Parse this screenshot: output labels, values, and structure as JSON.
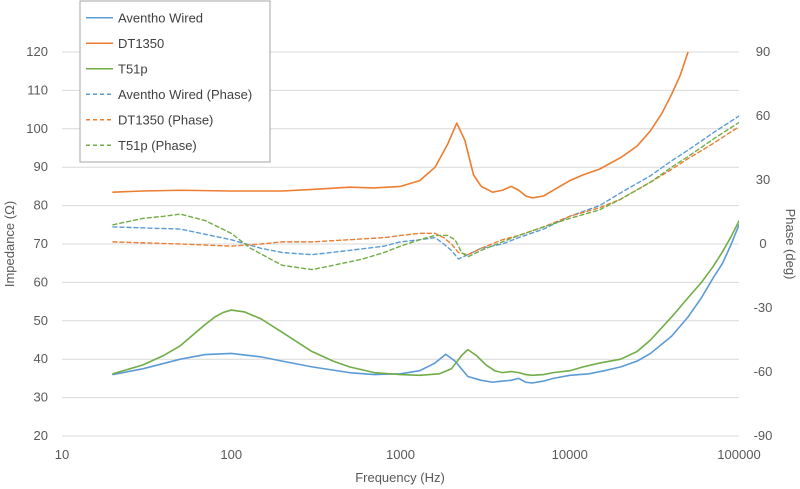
{
  "chart_data": {
    "type": "line",
    "title": "",
    "xlabel": "Frequency (Hz)",
    "ylabel": "Impedance (Ω)",
    "y2label": "Phase (deg)",
    "x_scale": "log",
    "xlim": [
      10,
      100000
    ],
    "ylim": [
      20,
      120
    ],
    "y2lim": [
      -90,
      90
    ],
    "x_ticks": [
      10,
      100,
      1000,
      10000,
      100000
    ],
    "x_tick_labels": [
      "10",
      "100",
      "1000",
      "10000",
      "100000"
    ],
    "y_ticks": [
      20,
      30,
      40,
      50,
      60,
      70,
      80,
      90,
      100,
      110,
      120
    ],
    "y2_ticks": [
      -90,
      -60,
      -30,
      0,
      30,
      60,
      90
    ],
    "grid": "horizontal",
    "legend_position": "top-left",
    "series": [
      {
        "name": "Aventho Wired",
        "axis": "left",
        "style": "solid",
        "color": "#5B9BD5",
        "points": [
          [
            20,
            36.0
          ],
          [
            30,
            37.5
          ],
          [
            50,
            40.0
          ],
          [
            70,
            41.2
          ],
          [
            100,
            41.5
          ],
          [
            150,
            40.6
          ],
          [
            200,
            39.5
          ],
          [
            300,
            38.0
          ],
          [
            500,
            36.5
          ],
          [
            700,
            36.0
          ],
          [
            1000,
            36.2
          ],
          [
            1300,
            37.0
          ],
          [
            1600,
            39.0
          ],
          [
            1850,
            41.3
          ],
          [
            2100,
            39.5
          ],
          [
            2500,
            35.5
          ],
          [
            3000,
            34.5
          ],
          [
            3500,
            34.0
          ],
          [
            4000,
            34.3
          ],
          [
            4500,
            34.5
          ],
          [
            5000,
            35.0
          ],
          [
            5500,
            34.0
          ],
          [
            6000,
            33.8
          ],
          [
            7000,
            34.3
          ],
          [
            8000,
            35.0
          ],
          [
            10000,
            35.8
          ],
          [
            13000,
            36.2
          ],
          [
            16000,
            37.0
          ],
          [
            20000,
            38.0
          ],
          [
            25000,
            39.5
          ],
          [
            30000,
            41.5
          ],
          [
            40000,
            46.0
          ],
          [
            50000,
            51.0
          ],
          [
            60000,
            56.0
          ],
          [
            70000,
            61.0
          ],
          [
            80000,
            65.0
          ],
          [
            90000,
            70.0
          ],
          [
            100000,
            75.0
          ]
        ]
      },
      {
        "name": "DT1350",
        "axis": "left",
        "style": "solid",
        "color": "#ED7D31",
        "points": [
          [
            20,
            83.5
          ],
          [
            30,
            83.8
          ],
          [
            50,
            84.0
          ],
          [
            100,
            83.8
          ],
          [
            200,
            83.8
          ],
          [
            300,
            84.2
          ],
          [
            500,
            84.8
          ],
          [
            700,
            84.6
          ],
          [
            1000,
            85.0
          ],
          [
            1300,
            86.5
          ],
          [
            1600,
            90.0
          ],
          [
            1900,
            96.0
          ],
          [
            2150,
            101.5
          ],
          [
            2400,
            97.0
          ],
          [
            2700,
            88.0
          ],
          [
            3000,
            85.0
          ],
          [
            3500,
            83.5
          ],
          [
            4000,
            84.0
          ],
          [
            4500,
            85.0
          ],
          [
            5000,
            84.0
          ],
          [
            5500,
            82.5
          ],
          [
            6000,
            82.0
          ],
          [
            7000,
            82.5
          ],
          [
            8000,
            84.0
          ],
          [
            10000,
            86.5
          ],
          [
            12000,
            88.0
          ],
          [
            15000,
            89.5
          ],
          [
            20000,
            92.5
          ],
          [
            25000,
            95.5
          ],
          [
            30000,
            99.5
          ],
          [
            35000,
            104.0
          ],
          [
            40000,
            109.0
          ],
          [
            45000,
            114.0
          ],
          [
            50000,
            120.0
          ]
        ]
      },
      {
        "name": "T51p",
        "axis": "left",
        "style": "solid",
        "color": "#70AD47",
        "points": [
          [
            20,
            36.2
          ],
          [
            30,
            38.5
          ],
          [
            40,
            41.0
          ],
          [
            50,
            43.5
          ],
          [
            60,
            46.5
          ],
          [
            70,
            49.0
          ],
          [
            80,
            51.0
          ],
          [
            90,
            52.2
          ],
          [
            100,
            52.8
          ],
          [
            120,
            52.3
          ],
          [
            150,
            50.5
          ],
          [
            200,
            47.0
          ],
          [
            300,
            42.0
          ],
          [
            400,
            39.5
          ],
          [
            500,
            38.0
          ],
          [
            700,
            36.5
          ],
          [
            1000,
            36.0
          ],
          [
            1300,
            35.8
          ],
          [
            1700,
            36.2
          ],
          [
            2000,
            37.5
          ],
          [
            2300,
            41.0
          ],
          [
            2500,
            42.5
          ],
          [
            2800,
            41.0
          ],
          [
            3200,
            38.5
          ],
          [
            3600,
            37.0
          ],
          [
            4000,
            36.5
          ],
          [
            4500,
            36.8
          ],
          [
            5000,
            36.5
          ],
          [
            5500,
            36.0
          ],
          [
            6000,
            35.8
          ],
          [
            7000,
            36.0
          ],
          [
            8000,
            36.5
          ],
          [
            10000,
            37.0
          ],
          [
            12000,
            38.0
          ],
          [
            15000,
            39.0
          ],
          [
            20000,
            40.0
          ],
          [
            25000,
            42.0
          ],
          [
            30000,
            45.0
          ],
          [
            40000,
            51.0
          ],
          [
            50000,
            56.0
          ],
          [
            60000,
            60.0
          ],
          [
            70000,
            64.0
          ],
          [
            80000,
            68.0
          ],
          [
            90000,
            72.0
          ],
          [
            100000,
            76.0
          ]
        ]
      },
      {
        "name": "Aventho Wired (Phase)",
        "axis": "right",
        "style": "dashed",
        "color": "#5B9BD5",
        "points": [
          [
            20,
            8
          ],
          [
            50,
            7
          ],
          [
            100,
            2
          ],
          [
            150,
            -2
          ],
          [
            200,
            -4
          ],
          [
            300,
            -5
          ],
          [
            500,
            -3
          ],
          [
            800,
            -1
          ],
          [
            1000,
            1
          ],
          [
            1300,
            2
          ],
          [
            1600,
            3
          ],
          [
            1800,
            0
          ],
          [
            2000,
            -3
          ],
          [
            2200,
            -7
          ],
          [
            2500,
            -5
          ],
          [
            3000,
            -2
          ],
          [
            4000,
            0
          ],
          [
            5000,
            3
          ],
          [
            7000,
            7
          ],
          [
            10000,
            13
          ],
          [
            15000,
            18
          ],
          [
            20000,
            24
          ],
          [
            30000,
            32
          ],
          [
            40000,
            39
          ],
          [
            50000,
            44
          ],
          [
            70000,
            52
          ],
          [
            100000,
            60
          ]
        ]
      },
      {
        "name": "DT1350 (Phase)",
        "axis": "right",
        "style": "dashed",
        "color": "#ED7D31",
        "points": [
          [
            20,
            1
          ],
          [
            50,
            0
          ],
          [
            100,
            -1
          ],
          [
            150,
            0
          ],
          [
            200,
            1
          ],
          [
            300,
            1
          ],
          [
            500,
            2
          ],
          [
            800,
            3
          ],
          [
            1000,
            4
          ],
          [
            1300,
            5
          ],
          [
            1600,
            5
          ],
          [
            1800,
            3
          ],
          [
            2000,
            0
          ],
          [
            2200,
            -4
          ],
          [
            2500,
            -5
          ],
          [
            3000,
            -2
          ],
          [
            4000,
            2
          ],
          [
            5000,
            4
          ],
          [
            7000,
            8
          ],
          [
            10000,
            13
          ],
          [
            15000,
            17
          ],
          [
            20000,
            21
          ],
          [
            30000,
            29
          ],
          [
            40000,
            35
          ],
          [
            50000,
            40
          ],
          [
            70000,
            47
          ],
          [
            100000,
            55
          ]
        ]
      },
      {
        "name": "T51p (Phase)",
        "axis": "right",
        "style": "dashed",
        "color": "#70AD47",
        "points": [
          [
            20,
            9
          ],
          [
            30,
            12
          ],
          [
            40,
            13
          ],
          [
            50,
            14
          ],
          [
            70,
            11
          ],
          [
            100,
            5
          ],
          [
            130,
            -2
          ],
          [
            170,
            -7
          ],
          [
            200,
            -10
          ],
          [
            300,
            -12
          ],
          [
            400,
            -10
          ],
          [
            600,
            -7
          ],
          [
            800,
            -4
          ],
          [
            1000,
            -1
          ],
          [
            1300,
            2
          ],
          [
            1600,
            4
          ],
          [
            1900,
            4
          ],
          [
            2100,
            2
          ],
          [
            2300,
            -4
          ],
          [
            2500,
            -6
          ],
          [
            3000,
            -3
          ],
          [
            4000,
            1
          ],
          [
            5000,
            4
          ],
          [
            7000,
            8
          ],
          [
            10000,
            12
          ],
          [
            15000,
            16
          ],
          [
            20000,
            21
          ],
          [
            30000,
            29
          ],
          [
            40000,
            36
          ],
          [
            50000,
            41
          ],
          [
            70000,
            49
          ],
          [
            100000,
            57
          ]
        ]
      }
    ]
  }
}
